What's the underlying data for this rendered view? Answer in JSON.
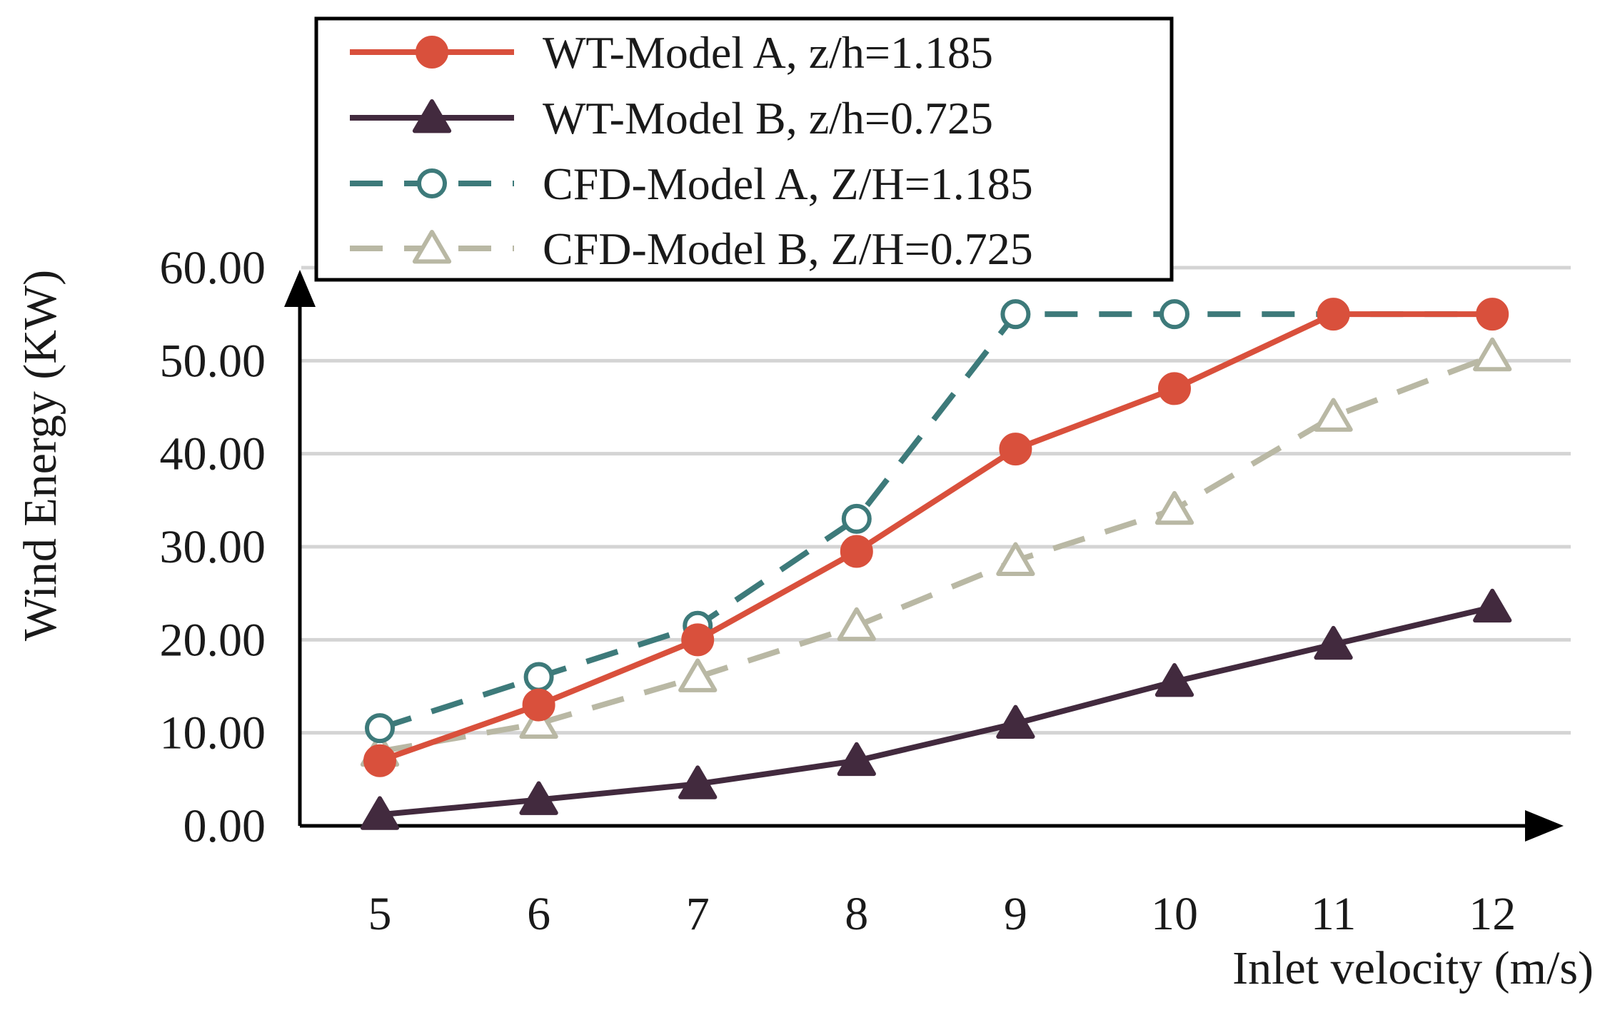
{
  "chart_data": {
    "type": "line",
    "title": "",
    "xlabel": "Inlet velocity (m/s)",
    "ylabel": "Wind Energy (KW)",
    "categories": [
      5,
      6,
      7,
      8,
      9,
      10,
      11,
      12
    ],
    "category_labels": [
      "5",
      "6",
      "7",
      "8",
      "9",
      "10",
      "11",
      "12"
    ],
    "ylim": [
      0,
      60
    ],
    "yticks": [
      0,
      10,
      20,
      30,
      40,
      50,
      60
    ],
    "ytick_labels": [
      "0.00",
      "10.00",
      "20.00",
      "30.00",
      "40.00",
      "50.00",
      "60.00"
    ],
    "grid": "horizontal",
    "legend_position": "top",
    "series": [
      {
        "name": "WT-Model A, z/h=1.185",
        "values": [
          7.0,
          13.0,
          20.0,
          29.5,
          40.5,
          47.0,
          55.0,
          55.0
        ],
        "color": "#d9503c",
        "marker": "circle",
        "marker_fill": "#d9503c",
        "dash": "solid"
      },
      {
        "name": "WT-Model B, z/h=0.725",
        "values": [
          1.2,
          2.8,
          4.5,
          7.0,
          11.0,
          15.5,
          19.5,
          23.5
        ],
        "color": "#422a3e",
        "marker": "triangle",
        "marker_fill": "#422a3e",
        "dash": "solid"
      },
      {
        "name": "CFD-Model A, Z/H=1.185",
        "values": [
          10.5,
          16.0,
          21.5,
          33.0,
          55.0,
          55.0,
          55.0,
          55.0
        ],
        "color": "#3d7a7a",
        "marker": "circle",
        "marker_fill": "#ffffff",
        "dash": "dashed"
      },
      {
        "name": "CFD-Model B, Z/H=0.725",
        "values": [
          8.0,
          11.0,
          16.0,
          21.5,
          28.5,
          34.0,
          44.0,
          50.5
        ],
        "color": "#b9b8a4",
        "marker": "triangle",
        "marker_fill": "#ffffff",
        "dash": "dashed"
      }
    ]
  }
}
